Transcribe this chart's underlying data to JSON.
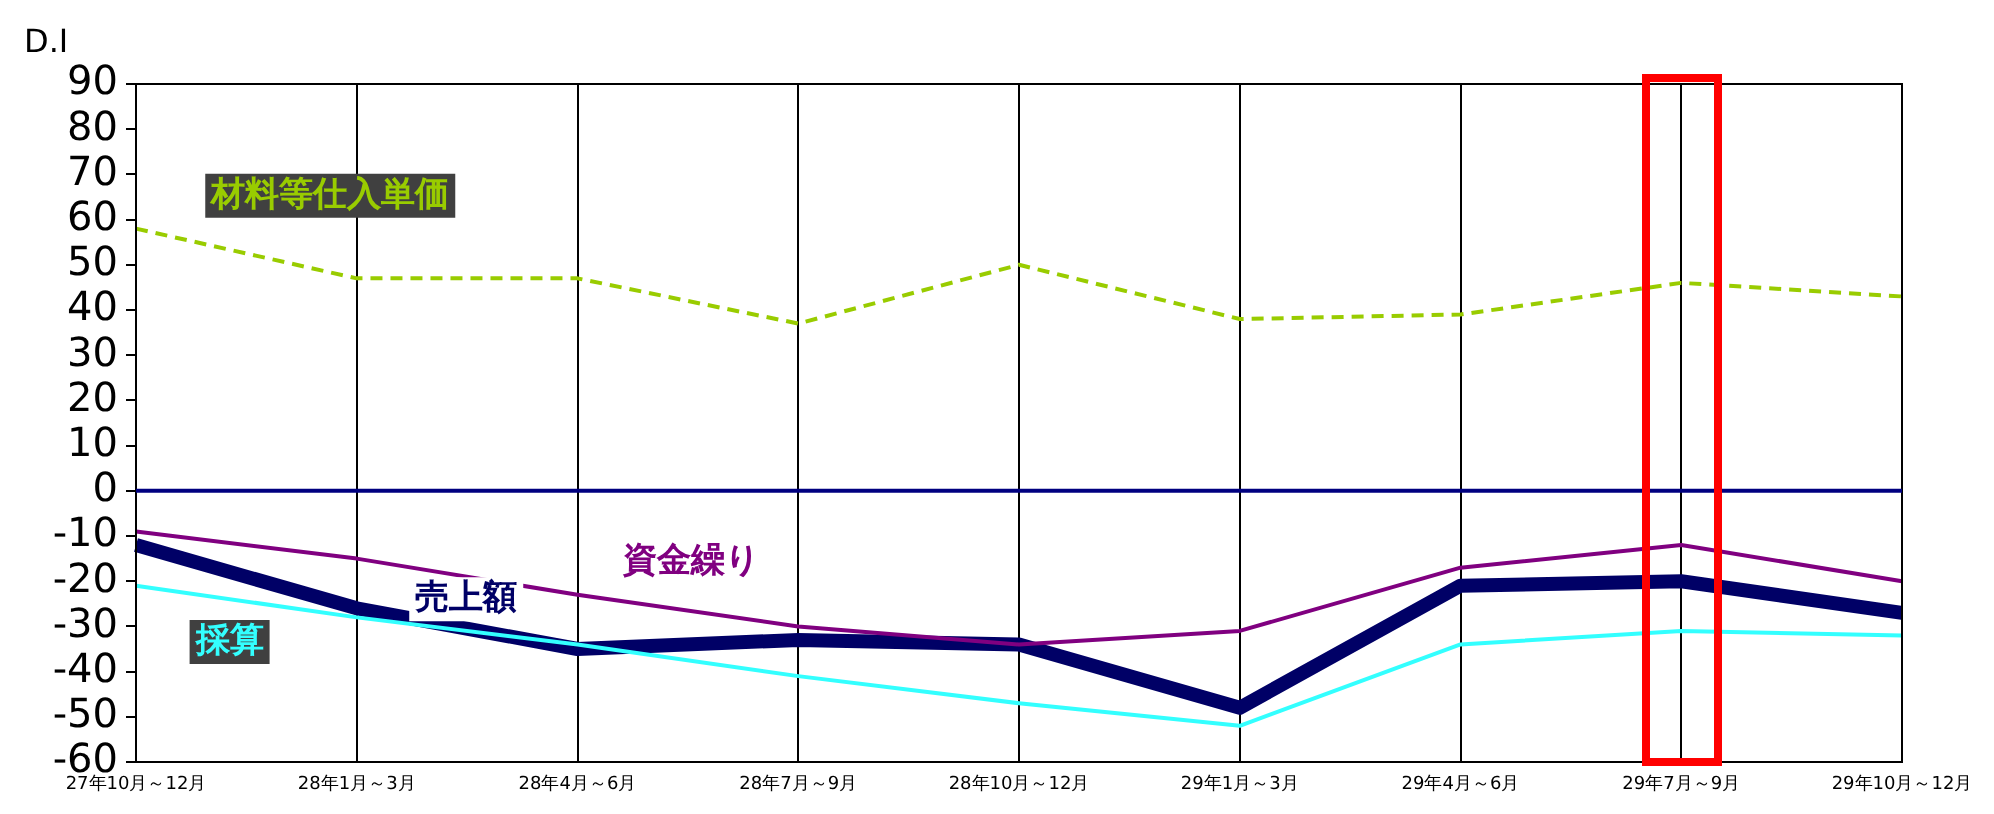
{
  "chart_data": {
    "type": "line",
    "ylabel": "D.I",
    "categories": [
      "27年10月～12月",
      "28年1月～3月",
      "28年4月～6月",
      "28年7月～9月",
      "28年10月～12月",
      "29年1月～3月",
      "29年4月～6月",
      "29年7月～9月",
      "29年10月～12月"
    ],
    "series": [
      {
        "name": "材料等仕入単価",
        "color": "#99cc00",
        "line_style": "dashed",
        "values": [
          58,
          47,
          47,
          37,
          50,
          38,
          39,
          46,
          43
        ]
      },
      {
        "name": "資金繰り",
        "color": "#800080",
        "values": [
          -9,
          -15,
          -23,
          -30,
          -34,
          -31,
          -17,
          -12,
          -20
        ]
      },
      {
        "name": "売上額",
        "color": "#000066",
        "values": [
          -12,
          -26,
          -35,
          -33,
          -34,
          -48,
          -21,
          -20,
          -27
        ]
      },
      {
        "name": "採算",
        "color": "#33ffff",
        "values": [
          -21,
          -28,
          -34,
          -41,
          -47,
          -52,
          -34,
          -31,
          -32
        ]
      }
    ],
    "ylim": [
      -60,
      90
    ],
    "yticks": [
      -60,
      -50,
      -40,
      -30,
      -20,
      -10,
      0,
      10,
      20,
      30,
      40,
      50,
      60,
      70,
      80,
      90
    ],
    "grid": "x",
    "legend": false,
    "marker": "none",
    "ref_lines": [
      {
        "axis": "y",
        "value": 0,
        "color": "#000080"
      }
    ]
  }
}
